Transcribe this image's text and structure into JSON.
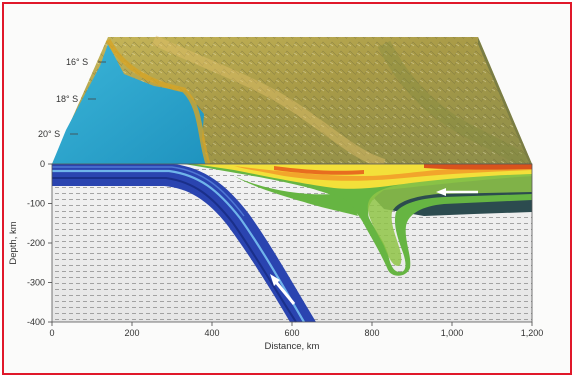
{
  "map": {
    "lat_labels": [
      "16° S",
      "18° S",
      "20° S"
    ]
  },
  "axes": {
    "y_label": "Depth, km",
    "x_label": "Distance, km",
    "y_ticks": [
      "0",
      "-100",
      "-200",
      "-300",
      "-400"
    ],
    "x_ticks": [
      "0",
      "200",
      "400",
      "600",
      "800",
      "1,000",
      "1,200"
    ]
  },
  "colors": {
    "frame": "#e0182a",
    "ocean": "#2ba6cf",
    "terrain": "#b3a449",
    "slab": "#2a44b0",
    "hot_mantle": "#f1e23a",
    "lithosphere": "#2c4b4f",
    "mantle": "#eeeeee"
  }
}
